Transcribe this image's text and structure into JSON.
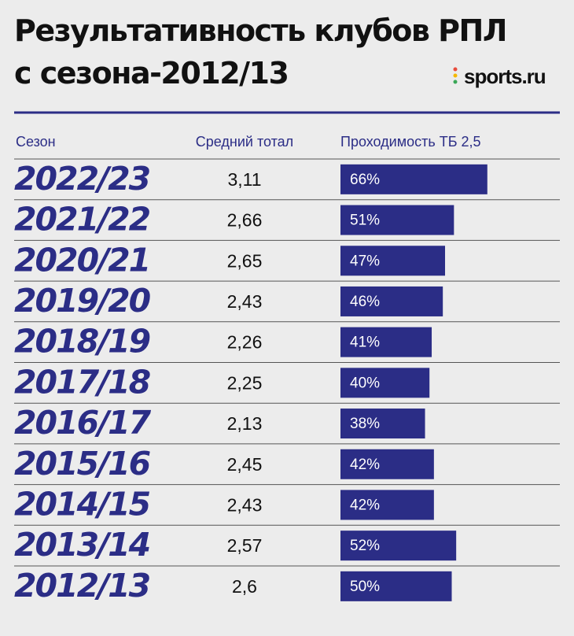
{
  "chart_data": {
    "type": "bar",
    "title": "Результативность клубов РПЛ\nс сезона-2012/13",
    "source": "sports.ru",
    "category_label": "Сезон",
    "categories": [
      "2022/23",
      "2021/22",
      "2020/21",
      "2019/20",
      "2018/19",
      "2017/18",
      "2016/17",
      "2015/16",
      "2014/15",
      "2013/14",
      "2012/13"
    ],
    "series": [
      {
        "name": "Средний тотал",
        "values": [
          3.11,
          2.66,
          2.65,
          2.43,
          2.26,
          2.25,
          2.13,
          2.45,
          2.43,
          2.57,
          2.6
        ],
        "value_labels": [
          "3,11",
          "2,66",
          "2,65",
          "2,43",
          "2,26",
          "2,25",
          "2,13",
          "2,45",
          "2,43",
          "2,57",
          "2,6"
        ]
      },
      {
        "name": "Проходимость ТБ 2,5",
        "color": "#2b2d86",
        "values": [
          66,
          51,
          47,
          46,
          41,
          40,
          38,
          42,
          42,
          52,
          50
        ],
        "value_labels": [
          "66%",
          "51%",
          "47%",
          "46%",
          "41%",
          "40%",
          "38%",
          "42%",
          "42%",
          "52%",
          "50%"
        ]
      }
    ],
    "xlim": [
      0,
      100
    ]
  }
}
